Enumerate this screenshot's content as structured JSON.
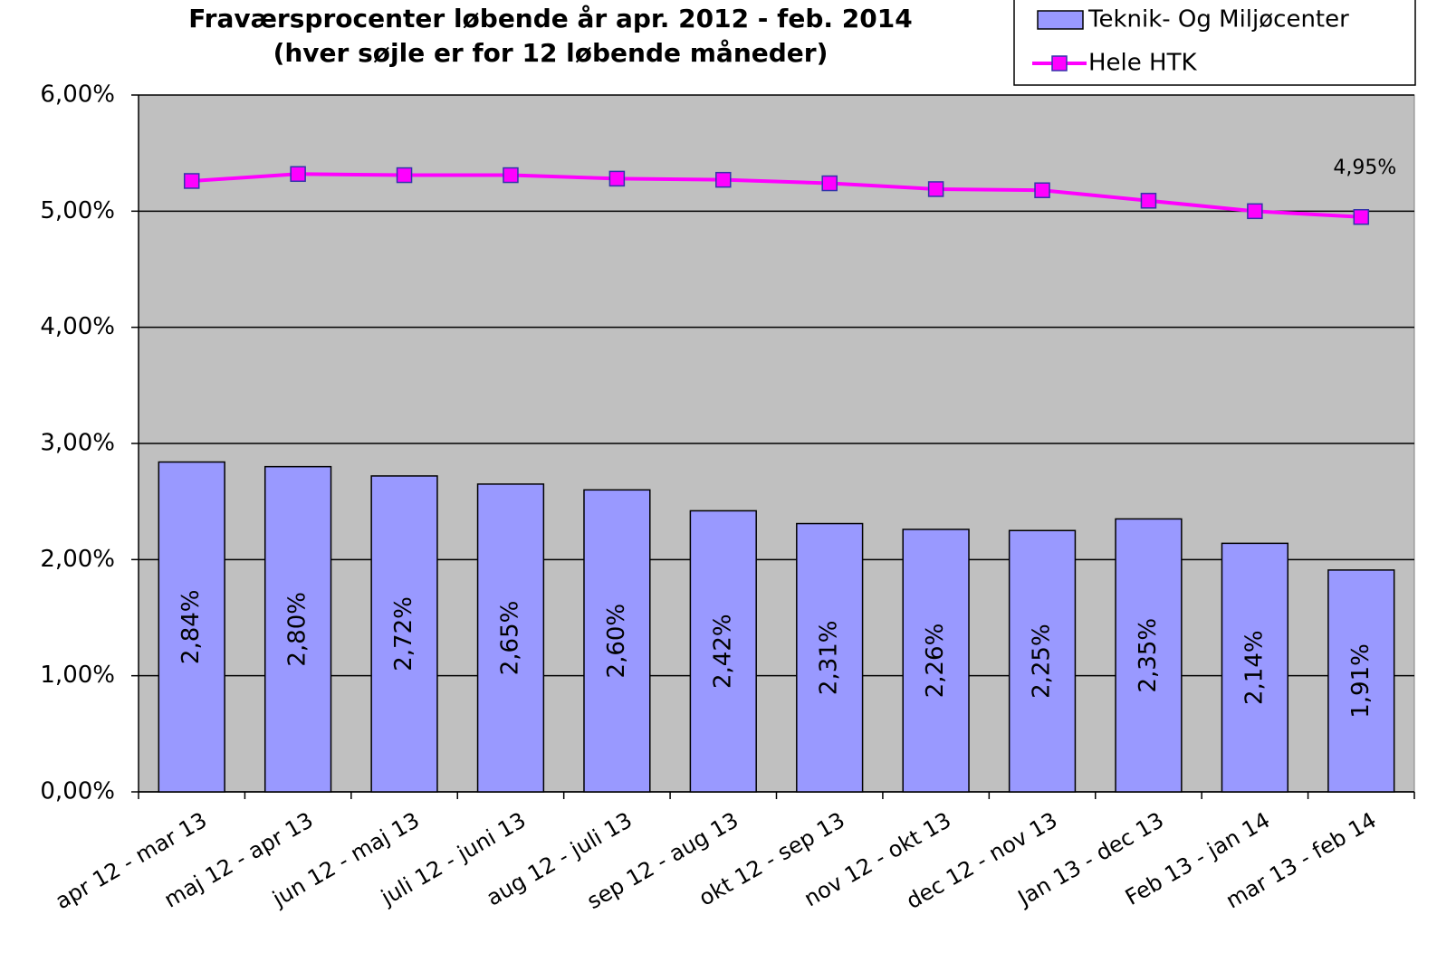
{
  "chart_data": {
    "type": "bar",
    "title": "Fraværsprocenter løbende år apr. 2012 - feb. 2014",
    "subtitle": "(hver søjle er for 12 løbende måneder)",
    "categories": [
      "apr 12 - mar 13",
      "maj 12 - apr 13",
      "jun 12 - maj 13",
      "juli 12 - juni 13",
      "aug 12 - juli 13",
      "sep 12 - aug 13",
      "okt 12 - sep 13",
      "nov 12 - okt 13",
      "dec 12 - nov 13",
      "Jan 13 - dec 13",
      "Feb 13 - jan 14",
      "mar 13 - feb 14"
    ],
    "series": [
      {
        "name": "Teknik- Og Miljøcenter",
        "type": "bar",
        "color": "#9999ff",
        "values": [
          2.84,
          2.8,
          2.72,
          2.65,
          2.6,
          2.42,
          2.31,
          2.26,
          2.25,
          2.35,
          2.14,
          1.91
        ],
        "value_labels": [
          "2,84%",
          "2,80%",
          "2,72%",
          "2,65%",
          "2,60%",
          "2,42%",
          "2,31%",
          "2,26%",
          "2,25%",
          "2,35%",
          "2,14%",
          "1,91%"
        ]
      },
      {
        "name": "Hele HTK",
        "type": "line",
        "color": "#ff00ff",
        "values": [
          5.26,
          5.32,
          5.31,
          5.31,
          5.28,
          5.27,
          5.24,
          5.19,
          5.18,
          5.09,
          5.0,
          4.95
        ],
        "value_labels": [
          null,
          null,
          null,
          null,
          null,
          null,
          null,
          null,
          null,
          null,
          null,
          "4,95%"
        ]
      }
    ],
    "ylim": [
      0,
      6
    ],
    "yticks": [
      {
        "value": 0,
        "label": "0,00%"
      },
      {
        "value": 1,
        "label": "1,00%"
      },
      {
        "value": 2,
        "label": "2,00%"
      },
      {
        "value": 3,
        "label": "3,00%"
      },
      {
        "value": 4,
        "label": "4,00%"
      },
      {
        "value": 5,
        "label": "5,00%"
      },
      {
        "value": 6,
        "label": "6,00%"
      }
    ],
    "grid": true,
    "legend": "top-right",
    "plot_background": "#c0c0c0"
  }
}
